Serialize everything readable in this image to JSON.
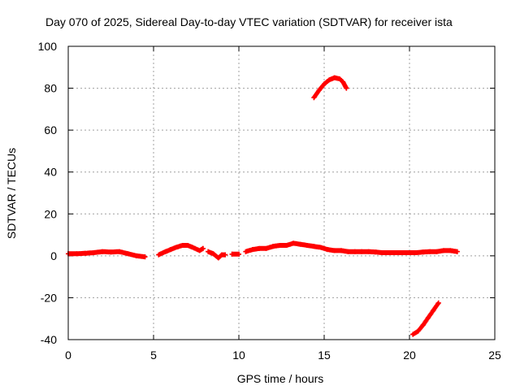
{
  "chart_data": {
    "type": "scatter",
    "title": "Day 070 of 2025, Sidereal Day-to-day VTEC variation (SDTVAR) for receiver ista",
    "xlabel": "GPS time / hours",
    "ylabel": "SDTVAR / TECUs",
    "xlim": [
      0,
      25
    ],
    "ylim": [
      -40,
      100
    ],
    "xticks": [
      0,
      5,
      10,
      15,
      20,
      25
    ],
    "yticks": [
      -40,
      -20,
      0,
      20,
      40,
      60,
      80,
      100
    ],
    "grid": true,
    "marker": "plus",
    "colors": {
      "series": "#ff0000",
      "grid": "#a0a0a0",
      "axis": "#000000"
    },
    "series": [
      {
        "name": "SDTVAR",
        "segments": [
          {
            "x": [
              0.0,
              0.5,
              1.0,
              1.5,
              2.0,
              2.5,
              3.0,
              3.5,
              4.0,
              4.5
            ],
            "y": [
              1.0,
              1.0,
              1.2,
              1.5,
              2.0,
              1.8,
              2.0,
              1.0,
              0.0,
              -0.5
            ]
          },
          {
            "x": [
              5.3,
              5.7,
              6.0,
              6.3,
              6.7,
              7.0,
              7.3,
              7.7,
              7.9
            ],
            "y": [
              0.5,
              2.0,
              3.0,
              4.0,
              5.0,
              5.0,
              4.0,
              2.5,
              3.5
            ]
          },
          {
            "x": [
              8.2,
              8.5,
              8.8,
              9.0,
              9.2
            ],
            "y": [
              2.0,
              1.0,
              -1.0,
              0.5,
              0.5
            ]
          },
          {
            "x": [
              9.6,
              10.0
            ],
            "y": [
              0.8,
              0.8
            ]
          },
          {
            "x": [
              10.4,
              10.8,
              11.2,
              11.6,
              12.0,
              12.4,
              12.8,
              13.2,
              13.6,
              14.0,
              14.4,
              14.8,
              15.2,
              15.6,
              16.0,
              16.4,
              16.8,
              17.2,
              17.6,
              18.0,
              18.4,
              18.8,
              19.2,
              19.6,
              20.0,
              20.4,
              20.8,
              21.2,
              21.6,
              22.0,
              22.4,
              22.8
            ],
            "y": [
              2.0,
              3.0,
              3.5,
              3.5,
              4.5,
              5.0,
              5.0,
              6.0,
              5.5,
              5.0,
              4.5,
              4.0,
              3.0,
              2.5,
              2.5,
              2.0,
              2.0,
              2.0,
              2.0,
              1.8,
              1.5,
              1.5,
              1.5,
              1.5,
              1.5,
              1.5,
              1.8,
              2.0,
              2.0,
              2.5,
              2.5,
              2.0
            ]
          },
          {
            "x": [
              14.4,
              14.7,
              15.0,
              15.3,
              15.6,
              15.9,
              16.1,
              16.3
            ],
            "y": [
              75.5,
              79.0,
              82.0,
              84.0,
              85.0,
              84.5,
              83.0,
              80.0
            ]
          },
          {
            "x": [
              20.2,
              20.5,
              20.8,
              21.1,
              21.4,
              21.7
            ],
            "y": [
              -37.5,
              -36.0,
              -33.0,
              -29.5,
              -26.0,
              -22.5
            ]
          }
        ]
      }
    ]
  }
}
